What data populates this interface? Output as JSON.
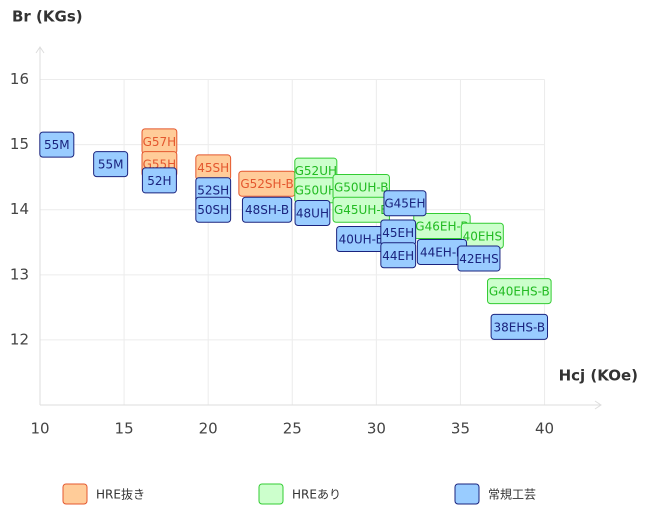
{
  "chart_data": {
    "type": "rect",
    "y_title": "Br (KGs)",
    "x_title": "Hcj (KOe)",
    "xlim": [
      10,
      43
    ],
    "ylim": [
      11,
      16.5
    ],
    "xticks": [
      10,
      15,
      20,
      25,
      30,
      35,
      40
    ],
    "yticks": [
      12,
      13,
      14,
      15,
      16
    ],
    "grid": true,
    "series": [
      {
        "name": "HRE抜き",
        "color": "#ffcc99",
        "stroke": "#e4572e",
        "text_color": "#e4572e",
        "labels": [
          "G57H",
          "G55H",
          "45SH",
          "G52SH-B"
        ],
        "x": [
          17.1,
          17.1,
          20.3,
          23.5
        ],
        "values": [
          15.05,
          14.7,
          14.65,
          14.4
        ]
      },
      {
        "name": "HREあり",
        "color": "#ccffcc",
        "stroke": "#33cc33",
        "text_color": "#22bb22",
        "labels": [
          "G52UH",
          "G50UH",
          "G50UH-B",
          "G45UH-B",
          "G46EH-B",
          "40EHS",
          "G40EHS-B"
        ],
        "x": [
          26.4,
          26.4,
          29.1,
          29.1,
          33.9,
          36.3,
          38.5
        ],
        "values": [
          14.6,
          14.3,
          14.35,
          14.0,
          13.75,
          13.6,
          12.75
        ]
      },
      {
        "name": "常規工芸",
        "color": "#99ccff",
        "stroke": "#1a237e",
        "text_color": "#1a237e",
        "labels": [
          "55M",
          "55M",
          "52H",
          "52SH",
          "50SH",
          "48SH-B",
          "48UH",
          "40UH-B",
          "G45EH",
          "45EH",
          "44EH",
          "44EH-B",
          "42EHS",
          "38EHS-B"
        ],
        "x": [
          11.0,
          14.2,
          17.1,
          20.3,
          20.3,
          23.5,
          26.2,
          29.1,
          31.7,
          31.3,
          31.3,
          33.9,
          36.1,
          38.5
        ],
        "values": [
          15.0,
          14.7,
          14.45,
          14.3,
          14.0,
          14.0,
          13.95,
          13.55,
          14.1,
          13.65,
          13.3,
          13.35,
          13.25,
          12.2
        ]
      }
    ]
  }
}
